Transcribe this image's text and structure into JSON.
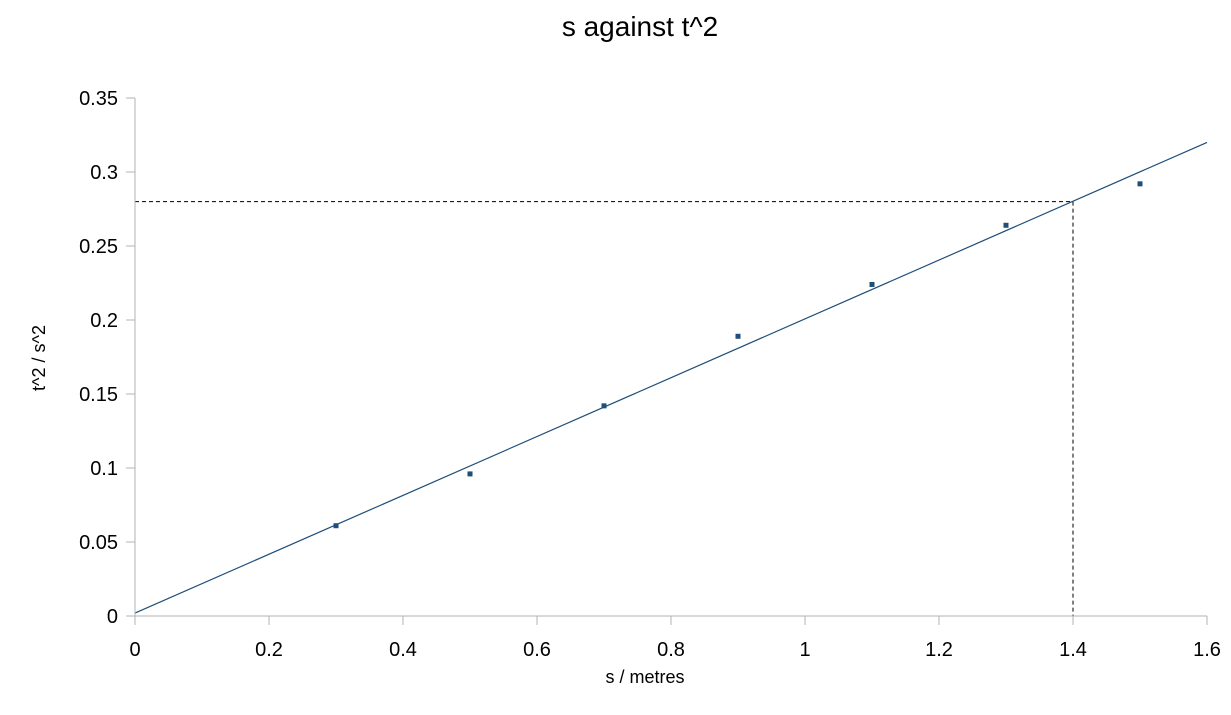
{
  "chart_data": {
    "type": "scatter",
    "title": "s against t^2",
    "xlabel": "s / metres",
    "ylabel": "t^2 / s^2",
    "xlim": [
      0,
      1.6
    ],
    "ylim": [
      0,
      0.35
    ],
    "x_ticks": [
      "0",
      "0.2",
      "0.4",
      "0.6",
      "0.8",
      "1",
      "1.2",
      "1.4",
      "1.6"
    ],
    "y_ticks": [
      "0",
      "0.05",
      "0.1",
      "0.15",
      "0.2",
      "0.25",
      "0.3",
      "0.35"
    ],
    "grid": false,
    "series": [
      {
        "x": [
          0.3,
          0.5,
          0.7,
          0.9,
          1.1,
          1.3,
          1.5
        ],
        "y": [
          0.061,
          0.096,
          0.142,
          0.189,
          0.224,
          0.264,
          0.292
        ],
        "marker_color": "#1f4e79"
      }
    ],
    "trendline": {
      "type": "linear",
      "from": [
        0,
        0.002
      ],
      "to": [
        1.6,
        0.32
      ],
      "color": "#1f4e79"
    },
    "reference_lines": {
      "x": 1.4,
      "y": 0.28,
      "style": "dashed",
      "color": "#000000"
    }
  }
}
